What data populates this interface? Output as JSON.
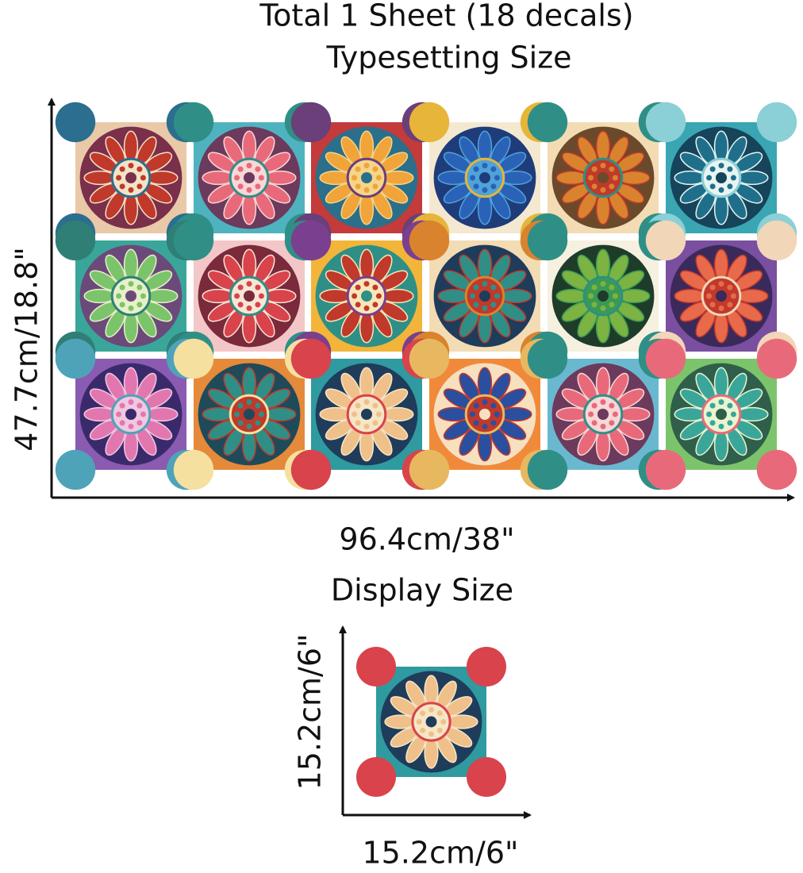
{
  "typesetting": {
    "title": "Total 1 Sheet (18 decals)",
    "subtitle": "Typesetting Size",
    "height_label": "47.7cm/18.8\"",
    "width_label": "96.4cm/38\""
  },
  "display": {
    "title": "Display Size",
    "height_label": "15.2cm/6\"",
    "width_label": "15.2cm/6\""
  }
}
